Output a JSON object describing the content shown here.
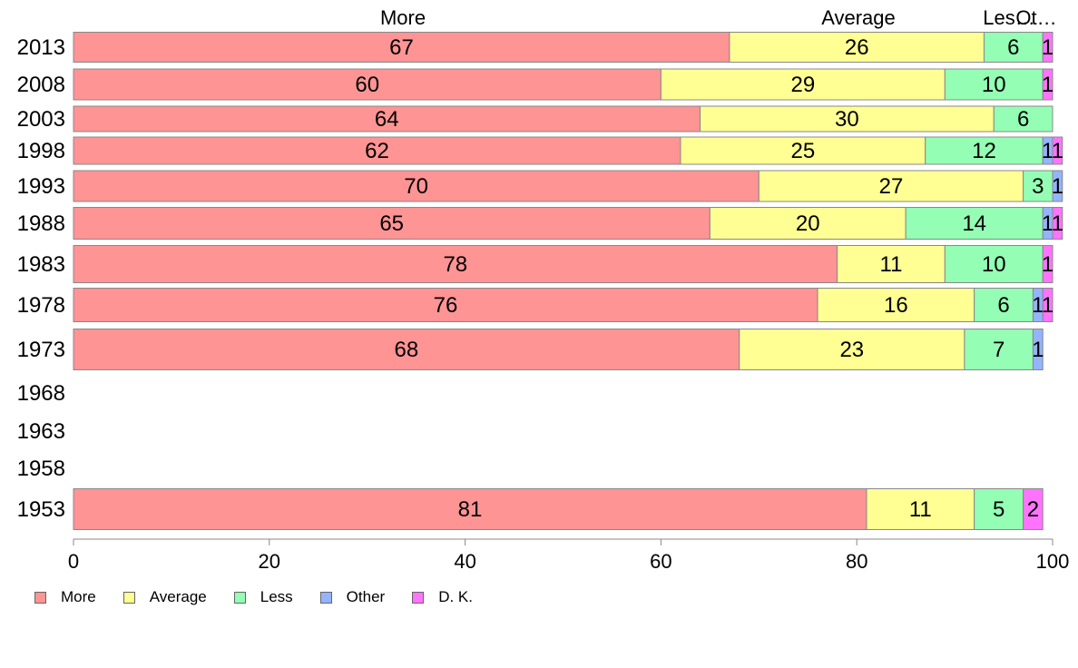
{
  "chart_data": {
    "type": "bar",
    "orientation": "horizontal",
    "stacked": true,
    "categories": [
      "2013",
      "2008",
      "2003",
      "1998",
      "1993",
      "1988",
      "1983",
      "1978",
      "1973",
      "1968",
      "1963",
      "1958",
      "1953"
    ],
    "series": [
      {
        "name": "More",
        "color": "#ff9494",
        "values": [
          67,
          60,
          64,
          62,
          70,
          65,
          78,
          76,
          68,
          null,
          null,
          null,
          81
        ]
      },
      {
        "name": "Average",
        "color": "#ffff94",
        "values": [
          26,
          29,
          30,
          25,
          27,
          20,
          11,
          16,
          23,
          null,
          null,
          null,
          11
        ]
      },
      {
        "name": "Less",
        "color": "#94ffb4",
        "values": [
          6,
          10,
          6,
          12,
          3,
          14,
          10,
          6,
          7,
          null,
          null,
          null,
          5
        ]
      },
      {
        "name": "Other",
        "color": "#94b4ff",
        "values": [
          0,
          0,
          0,
          1,
          1,
          1,
          0,
          1,
          1,
          null,
          null,
          null,
          0
        ]
      },
      {
        "name": "D. K.",
        "color": "#ff74ff",
        "values": [
          1,
          1,
          0,
          1,
          0,
          1,
          1,
          1,
          0,
          null,
          null,
          null,
          2
        ]
      }
    ],
    "top_labels": [
      "More",
      "Average",
      "Les…",
      "Ot…"
    ],
    "xlim": [
      0,
      100
    ],
    "xticks": [
      "0",
      "20",
      "40",
      "60",
      "80",
      "100"
    ],
    "grid": false,
    "legend_position": "bottom-left"
  }
}
